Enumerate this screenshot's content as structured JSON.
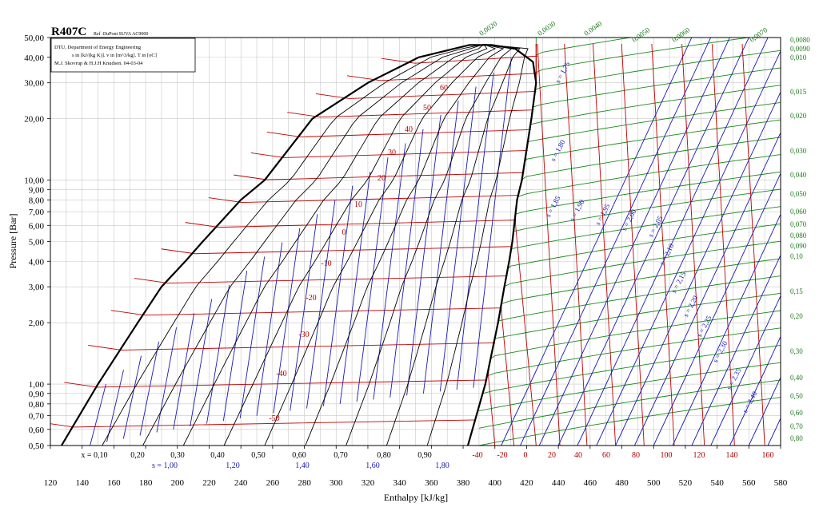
{
  "chart_data": {
    "type": "line",
    "title": "R407C",
    "subtitle": "Ref :DuPont SUVA AC9000",
    "info_lines": [
      "DTU, Department of Energy Engineering",
      "s in [kJ/(kg K)]. v in [m^3/kg]. T in [oC]",
      "M.J. Skovrup & H.J.H Knudsen. 04-03-04"
    ],
    "xlabel": "Enthalpy [kJ/kg]",
    "ylabel": "Pressure [Bar]",
    "xlim": [
      120,
      580
    ],
    "ylim": [
      0.5,
      50
    ],
    "y_scale": "log",
    "grid": true,
    "x_ticks": [
      "120",
      "140",
      "160",
      "180",
      "200",
      "220",
      "240",
      "260",
      "280",
      "300",
      "320",
      "340",
      "360",
      "380",
      "400",
      "420",
      "440",
      "460",
      "480",
      "500",
      "520",
      "540",
      "560",
      "580"
    ],
    "y_ticks": [
      "0,50",
      "0,60",
      "0,70",
      "0,80",
      "0,90",
      "1,00",
      "2,00",
      "3,00",
      "4,00",
      "5,00",
      "6,00",
      "7,00",
      "8,00",
      "9,00",
      "10,00",
      "20,00",
      "30,00",
      "40,00",
      "50,00"
    ],
    "y_tick_values": [
      0.5,
      0.6,
      0.7,
      0.8,
      0.9,
      1.0,
      2.0,
      3.0,
      4.0,
      5.0,
      6.0,
      7.0,
      8.0,
      9.0,
      10.0,
      20.0,
      30.0,
      40.0,
      50.0
    ],
    "quality_labels": [
      "x = 0,10",
      "0,20",
      "0,30",
      "0,40",
      "0,50",
      "0,60",
      "0,70",
      "0,80",
      "0,90"
    ],
    "quality_values": [
      0.1,
      0.2,
      0.3,
      0.4,
      0.5,
      0.6,
      0.7,
      0.8,
      0.9
    ],
    "entropy_bottom_labels": [
      "s = 1,00",
      "1,20",
      "1,40",
      "1,60",
      "1,80"
    ],
    "entropy_bottom_h": [
      200,
      260,
      320,
      380,
      440
    ],
    "temp_bottom_labels": [
      "-40",
      "-20",
      "0",
      "20",
      "40",
      "60",
      "80",
      "100",
      "120",
      "140",
      "160"
    ],
    "temp_bottom_h": [
      400,
      412,
      426,
      441,
      458,
      476,
      494,
      513,
      532,
      551,
      570
    ],
    "temp_dome_labels": [
      "60",
      "50",
      "40",
      "30",
      "20",
      "10",
      "0",
      "-10",
      "-20",
      "-30",
      "-40",
      "-50"
    ],
    "temp_dome_values": [
      60,
      50,
      40,
      30,
      20,
      10,
      0,
      -10,
      -20,
      -30,
      -40,
      -50
    ],
    "entropy_vapor_labels": [
      "s = 1,75",
      "s = 1,80",
      "s = 1,85",
      "s = 1,90",
      "s = 1,95",
      "s = 2,00",
      "s = 2,05",
      "s = 2,10",
      "s = 2,15",
      "s = 2,20",
      "s = 2,25",
      "s = 2,30",
      "s = 2,35",
      "s = 2,40"
    ],
    "volume_top_labels": [
      "0,0020",
      "0,0030",
      "0,0040",
      "0,0050",
      "0,0060",
      "0,0070"
    ],
    "volume_right_labels": [
      "0,0080",
      "0,0090",
      "0,010",
      "0,015",
      "0,020",
      "0,030",
      "0,040",
      "0,050",
      "0,060",
      "0,070",
      "0,080",
      "0,090",
      "0,10",
      "0,15",
      "0,20",
      "0,30",
      "0,40",
      "0,50",
      "0,60",
      "0,70",
      "0,80"
    ],
    "saturation_liquid": [
      [
        127,
        0.5
      ],
      [
        150,
        1.0
      ],
      [
        175,
        2.0
      ],
      [
        190,
        3.0
      ],
      [
        205,
        4.0
      ],
      [
        216,
        5.0
      ],
      [
        240,
        8.0
      ],
      [
        255,
        10.0
      ],
      [
        285,
        20.0
      ],
      [
        320,
        30.0
      ],
      [
        352,
        40.0
      ],
      [
        384,
        46.0
      ]
    ],
    "saturation_vapor": [
      [
        383,
        0.5
      ],
      [
        394,
        1.0
      ],
      [
        402,
        2.0
      ],
      [
        406,
        3.0
      ],
      [
        409,
        4.0
      ],
      [
        411,
        5.0
      ],
      [
        414,
        8.0
      ],
      [
        417,
        10.0
      ],
      [
        423,
        20.0
      ],
      [
        426,
        30.0
      ],
      [
        424,
        38.0
      ],
      [
        413,
        44.0
      ],
      [
        398,
        46.0
      ]
    ],
    "critical_point": [
      393,
      46.3
    ]
  },
  "colors": {
    "isotherm": "#c00000",
    "isentrope": "#1a1ab0",
    "isochore": "#1a8a1a",
    "saturation": "#000000",
    "grid": "#c8c8c8"
  }
}
